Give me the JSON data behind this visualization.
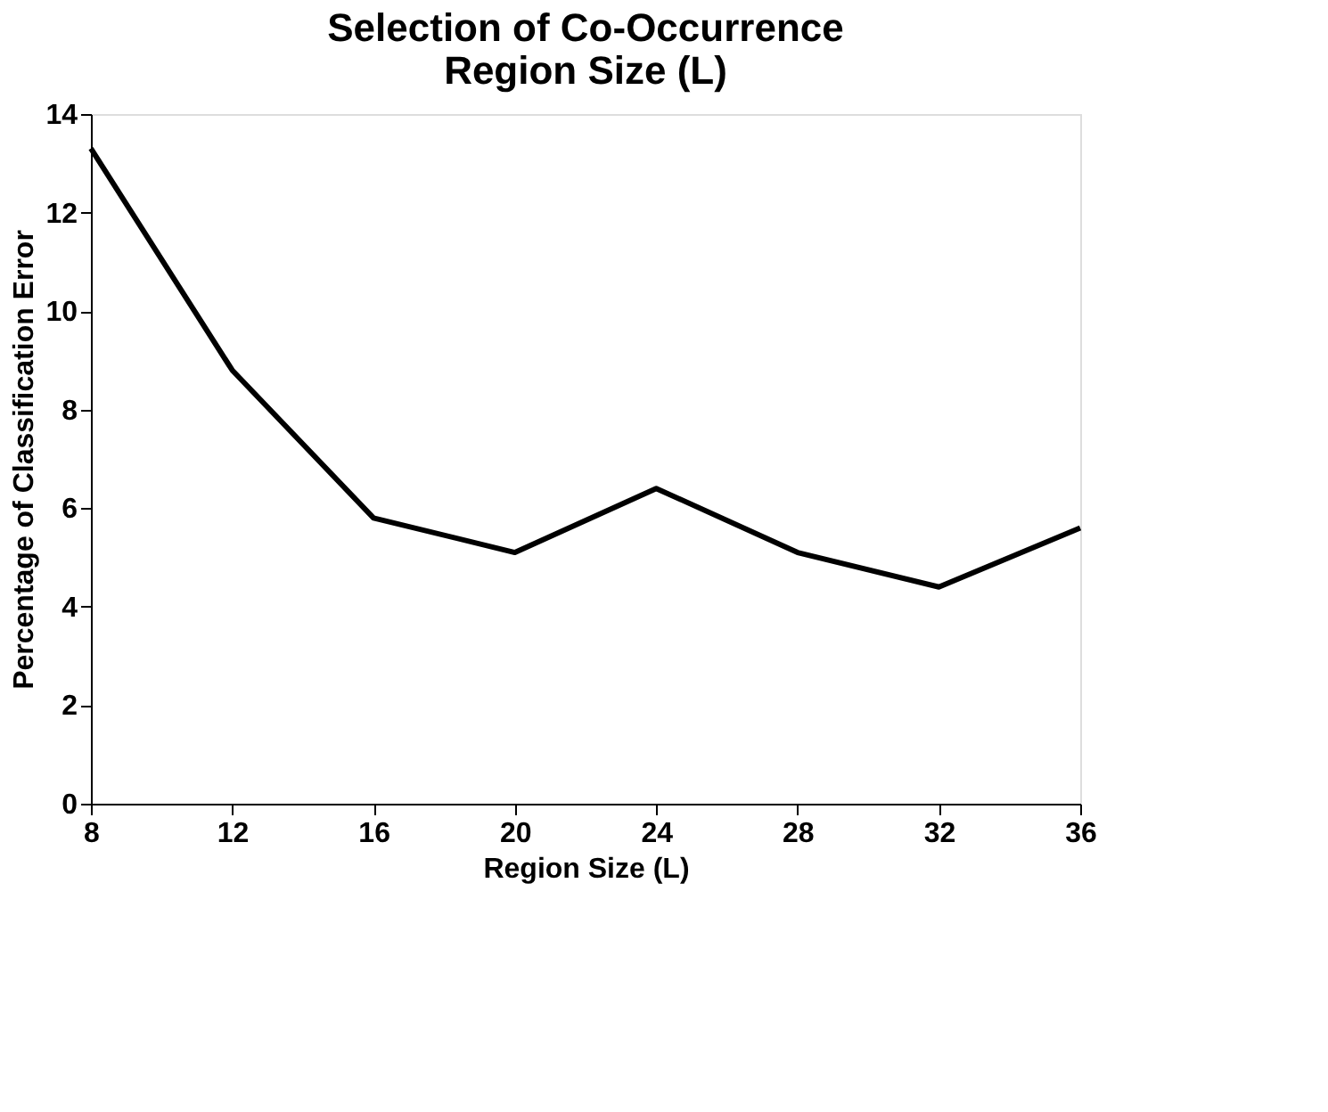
{
  "chart_data": {
    "type": "line",
    "title": [
      "Selection of Co-Occurrence",
      "Region Size (L)"
    ],
    "xlabel": "Region Size (L)",
    "ylabel": "Percentage of Classification Error",
    "x": [
      8,
      12,
      16,
      20,
      24,
      28,
      32,
      36
    ],
    "series": [
      {
        "color": "#000000",
        "values": [
          13.3,
          8.8,
          5.8,
          5.1,
          6.4,
          5.1,
          4.4,
          5.6
        ]
      }
    ],
    "xlim": [
      8,
      36
    ],
    "xticks": [
      8,
      12,
      16,
      20,
      24,
      28,
      32,
      36
    ],
    "ylim": [
      0,
      14
    ],
    "yticks": [
      0,
      2,
      4,
      6,
      8,
      10,
      12,
      14
    ],
    "grid": false,
    "marker": "none",
    "line_style": "solid"
  }
}
